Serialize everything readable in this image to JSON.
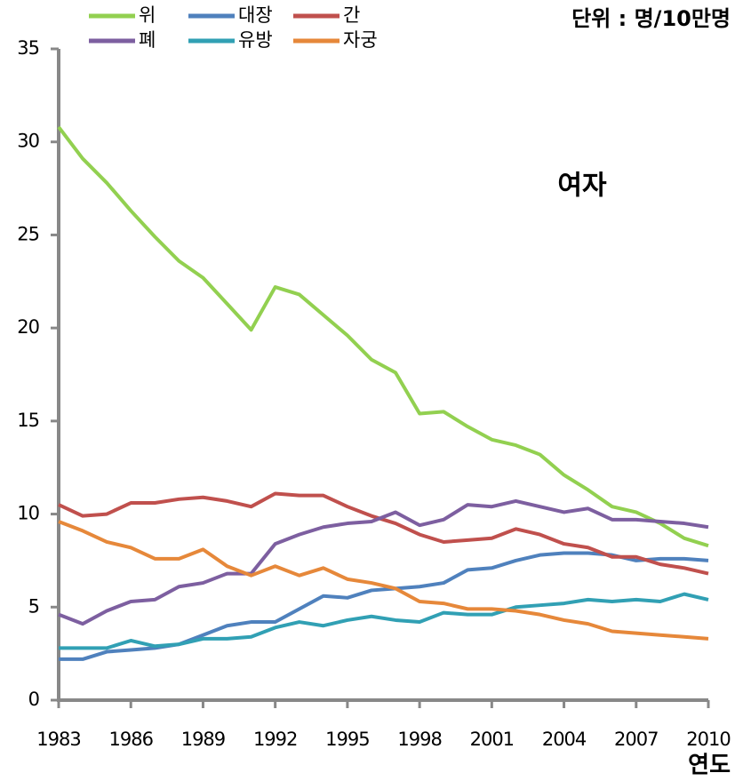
{
  "chart_data": {
    "type": "line",
    "unit_label": "단위 : 명/10만명",
    "annotation": "여자",
    "x_label": "연도",
    "x": [
      1983,
      1984,
      1985,
      1986,
      1987,
      1988,
      1989,
      1990,
      1991,
      1992,
      1993,
      1994,
      1995,
      1996,
      1997,
      1998,
      1999,
      2000,
      2001,
      2002,
      2003,
      2004,
      2005,
      2006,
      2007,
      2008,
      2009,
      2010
    ],
    "xlim": [
      1983,
      2010
    ],
    "xticks": [
      1983,
      1986,
      1989,
      1992,
      1995,
      1998,
      2001,
      2004,
      2007,
      2010
    ],
    "ylim": [
      0,
      35
    ],
    "yticks": [
      0,
      5,
      10,
      15,
      20,
      25,
      30,
      35
    ],
    "grid": false,
    "legend": "top",
    "series": [
      {
        "name": "위",
        "color": "#92d050",
        "values": [
          30.8,
          29.1,
          27.8,
          26.3,
          24.9,
          23.6,
          22.7,
          21.3,
          19.9,
          22.2,
          21.8,
          20.7,
          19.6,
          18.3,
          17.6,
          15.4,
          15.5,
          14.7,
          14.0,
          13.7,
          13.2,
          12.1,
          11.3,
          10.4,
          10.1,
          9.5,
          8.7,
          8.3
        ]
      },
      {
        "name": "대장",
        "color": "#4f81bd",
        "values": [
          2.2,
          2.2,
          2.6,
          2.7,
          2.8,
          3.0,
          3.5,
          4.0,
          4.2,
          4.2,
          4.9,
          5.6,
          5.5,
          5.9,
          6.0,
          6.1,
          6.3,
          7.0,
          7.1,
          7.5,
          7.8,
          7.9,
          7.9,
          7.8,
          7.5,
          7.6,
          7.6,
          7.5
        ]
      },
      {
        "name": "간",
        "color": "#c0504d",
        "values": [
          10.5,
          9.9,
          10.0,
          10.6,
          10.6,
          10.8,
          10.9,
          10.7,
          10.4,
          11.1,
          11.0,
          11.0,
          10.4,
          9.9,
          9.5,
          8.9,
          8.5,
          8.6,
          8.7,
          9.2,
          8.9,
          8.4,
          8.2,
          7.7,
          7.7,
          7.3,
          7.1,
          6.8
        ]
      },
      {
        "name": "폐",
        "color": "#7d5fa0",
        "values": [
          4.6,
          4.1,
          4.8,
          5.3,
          5.4,
          6.1,
          6.3,
          6.8,
          6.8,
          8.4,
          8.9,
          9.3,
          9.5,
          9.6,
          10.1,
          9.4,
          9.7,
          10.5,
          10.4,
          10.7,
          10.4,
          10.1,
          10.3,
          9.7,
          9.7,
          9.6,
          9.5,
          9.3
        ]
      },
      {
        "name": "유방",
        "color": "#31a0b4",
        "values": [
          2.8,
          2.8,
          2.8,
          3.2,
          2.9,
          3.0,
          3.3,
          3.3,
          3.4,
          3.9,
          4.2,
          4.0,
          4.3,
          4.5,
          4.3,
          4.2,
          4.7,
          4.6,
          4.6,
          5.0,
          5.1,
          5.2,
          5.4,
          5.3,
          5.4,
          5.3,
          5.7,
          5.4
        ]
      },
      {
        "name": "자궁",
        "color": "#e6883a",
        "values": [
          9.6,
          9.1,
          8.5,
          8.2,
          7.6,
          7.6,
          8.1,
          7.2,
          6.7,
          7.2,
          6.7,
          7.1,
          6.5,
          6.3,
          6.0,
          5.3,
          5.2,
          4.9,
          4.9,
          4.8,
          4.6,
          4.3,
          4.1,
          3.7,
          3.6,
          3.5,
          3.4,
          3.3
        ]
      }
    ]
  }
}
